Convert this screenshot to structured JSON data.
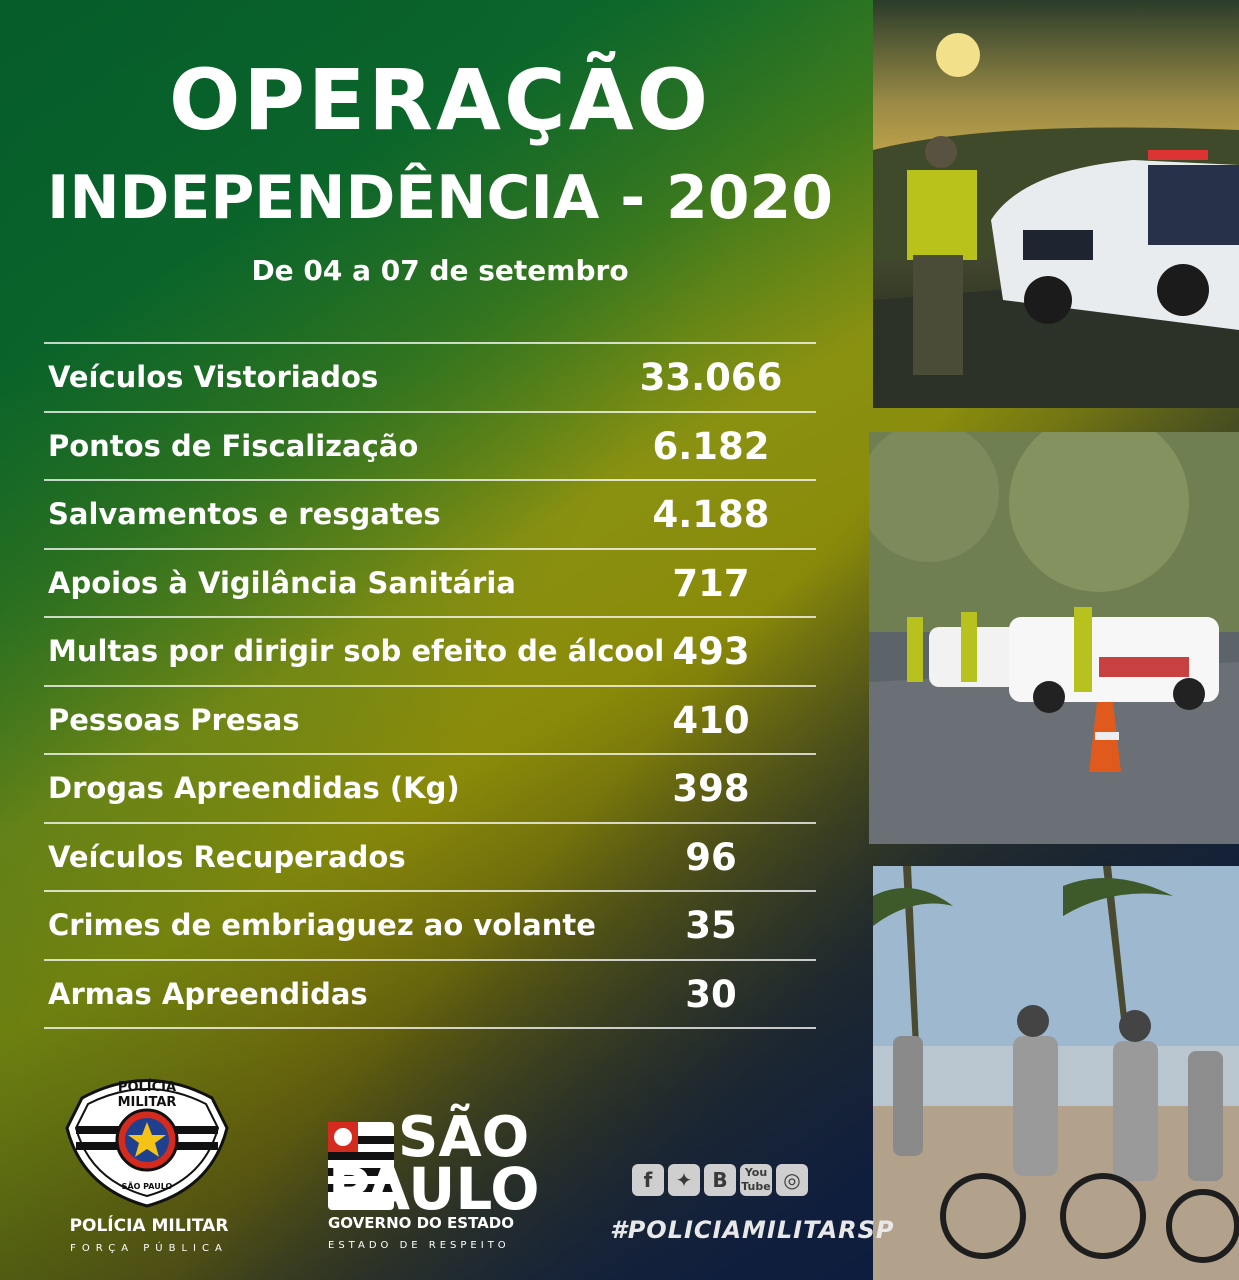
{
  "header": {
    "title_line1": "OPERAÇÃO",
    "title_line2": "INDEPENDÊNCIA - 2020",
    "subtitle": "De 04 a 07 de setembro"
  },
  "stats": [
    {
      "label": "Veículos Vistoriados",
      "value": "33.066"
    },
    {
      "label": "Pontos de Fiscalização",
      "value": "6.182"
    },
    {
      "label": "Salvamentos e resgates",
      "value": "4.188"
    },
    {
      "label": "Apoios à Vigilância Sanitária",
      "value": "717"
    },
    {
      "label": "Multas por dirigir sob efeito de álcool",
      "value": "493"
    },
    {
      "label": "Pessoas Presas",
      "value": "410"
    },
    {
      "label": "Drogas Apreendidas (Kg)",
      "value": "398"
    },
    {
      "label": "Veículos Recuperados",
      "value": "96"
    },
    {
      "label": "Crimes de embriaguez ao volante",
      "value": "35"
    },
    {
      "label": "Armas Apreendidas",
      "value": "30"
    }
  ],
  "footer": {
    "pm_badge_text": "POLÍCIA MILITAR",
    "pm_badge_bottom": "SÃO PAULO",
    "pm_name": "POLÍCIA MILITAR",
    "pm_subtitle": "FORÇA PÚBLICA",
    "sp_line1": "SÃO",
    "sp_line2": "PAULO",
    "sp_gov": "GOVERNO DO ESTADO",
    "sp_motto": "ESTADO DE RESPEITO",
    "social_icons": [
      "facebook-icon",
      "twitter-icon",
      "blogger-icon",
      "youtube-icon",
      "instagram-icon"
    ],
    "hashtag": "#POLICIAMILITARSP"
  },
  "colors": {
    "green": "#0b5e2a",
    "yellow": "#8a9111",
    "blue": "#0e1f43"
  }
}
